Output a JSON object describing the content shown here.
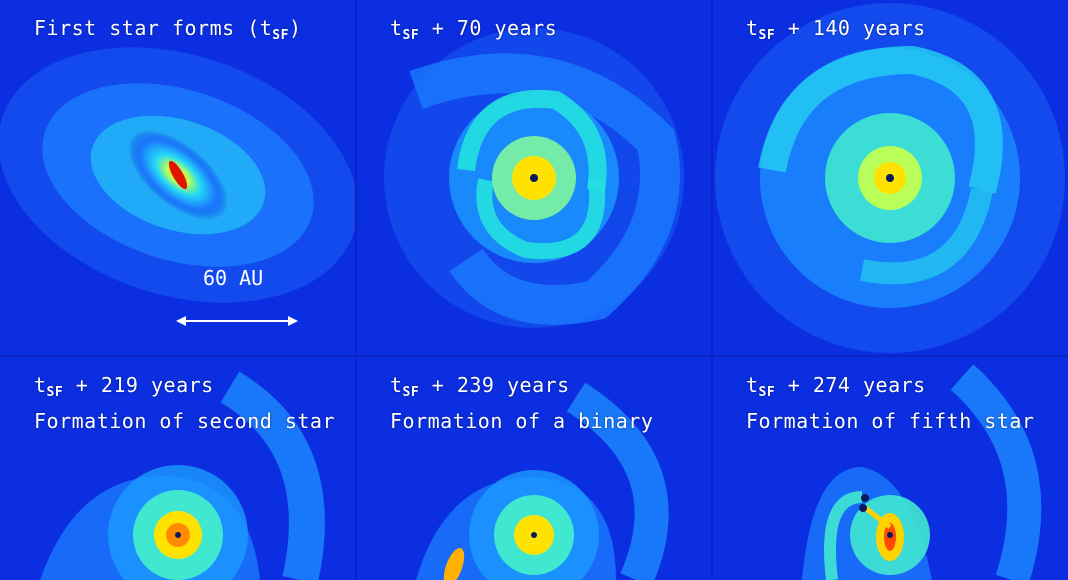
{
  "panels": [
    {
      "label": "First star forms (",
      "sub": "SF",
      "label_after": ")",
      "line2": ""
    },
    {
      "label": "t",
      "sub": "SF",
      "label_after": " + 70 years",
      "line2": ""
    },
    {
      "label": "t",
      "sub": "SF",
      "label_after": " + 140 years",
      "line2": ""
    },
    {
      "label": "t",
      "sub": "SF",
      "label_after": " + 219 years",
      "line2": "Formation of second star"
    },
    {
      "label": "t",
      "sub": "SF",
      "label_after": " + 239 years",
      "line2": "Formation of a binary"
    },
    {
      "label": "t",
      "sub": "SF",
      "label_after": " + 274 years",
      "line2": "Formation of fifth star"
    }
  ],
  "first_panel_t": "t",
  "scale": {
    "label": "60 AU"
  }
}
